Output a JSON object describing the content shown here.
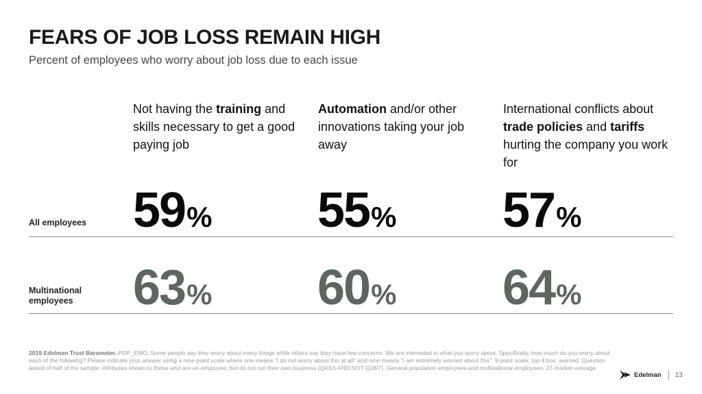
{
  "title": "FEARS OF JOB LOSS REMAIN HIGH",
  "subtitle": "Percent of employees who worry about job loss due to each issue",
  "columns": [
    {
      "heading_parts": [
        {
          "text": "Not having the ",
          "bold": false
        },
        {
          "text": "training",
          "bold": true
        },
        {
          "text": " and skills necessary to get a good paying job",
          "bold": false
        }
      ],
      "all_employees": "59",
      "multinational_employees": "63"
    },
    {
      "heading_parts": [
        {
          "text": "Automation",
          "bold": true
        },
        {
          "text": " and/or other innovations taking your job away",
          "bold": false
        }
      ],
      "all_employees": "55",
      "multinational_employees": "60"
    },
    {
      "heading_parts": [
        {
          "text": "International conflicts about ",
          "bold": false
        },
        {
          "text": "trade policies",
          "bold": true
        },
        {
          "text": " and ",
          "bold": false
        },
        {
          "text": "tariffs",
          "bold": true
        },
        {
          "text": " hurting the company you work for",
          "bold": false
        }
      ],
      "all_employees": "57",
      "multinational_employees": "64"
    }
  ],
  "percent_sign": "%",
  "row_labels": {
    "all": "All employees",
    "multi_line1": "Multinational",
    "multi_line2": "employees"
  },
  "footnote": {
    "source": "2019 Edelman Trust Barometer.",
    "text": " POP_EMO. Some people say they worry about many things while others say they have few concerns. We are interested in what you worry about. Specifically, how much do you worry about each of the following? Please indicate your answer using a nine-point scale where one means “I do not worry about this at all” and nine means “I am extremely worried about this”. 9-point scale; top 4 box, worried. Question asked of half of the sample. Attributes shown to those who are an employee, but do not run their own business (Q43/1 AND NOT Q28/7). General population employees and multinational employees, 27-market average."
  },
  "brand": "Edelman",
  "page_number": "13",
  "colors": {
    "all_value": "#0a0a0a",
    "multi_value": "#5f6660",
    "rule": "#8a8a8a"
  }
}
